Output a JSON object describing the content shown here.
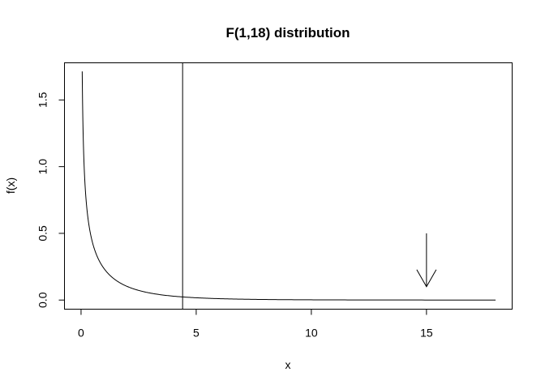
{
  "chart_data": {
    "type": "line",
    "title": "F(1,18) distribution",
    "xlabel": "x",
    "ylabel": "f(x)",
    "xlim": [
      -0.72,
      18.72
    ],
    "ylim": [
      -0.0684,
      1.7784
    ],
    "x_ticks": [
      0,
      5,
      10,
      15
    ],
    "x_tick_labels": [
      "0",
      "5",
      "10",
      "15"
    ],
    "y_ticks": [
      0.0,
      0.5,
      1.0,
      1.5
    ],
    "y_tick_labels": [
      "0.0",
      "0.5",
      "1.0",
      "1.5"
    ],
    "grid": false,
    "legend": "none",
    "series": [
      {
        "distribution": "F",
        "df1": 1,
        "df2": 18,
        "x_range": [
          0.05,
          18
        ],
        "color": "#000000"
      }
    ],
    "annotations": [
      {
        "kind": "vline",
        "x": 4.41,
        "color": "#000000"
      },
      {
        "kind": "arrow",
        "from": [
          15,
          0.5
        ],
        "to": [
          15,
          0.1
        ],
        "color": "#000000"
      }
    ]
  }
}
